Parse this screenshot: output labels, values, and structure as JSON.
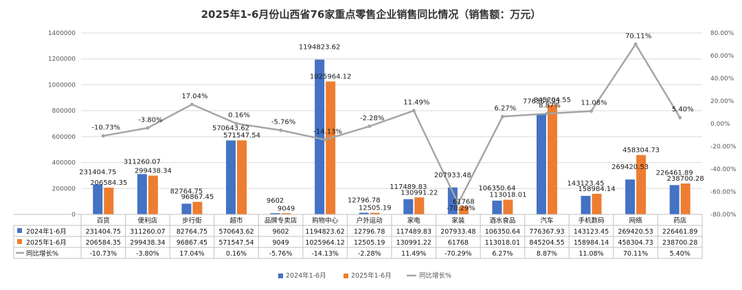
{
  "chart_data": {
    "type": "bar",
    "title": "2025年1-6月份山西省76家重点零售企业销售同比情况（销售额：万元）",
    "categories": [
      "百货",
      "便利店",
      "步行街",
      "超市",
      "品牌专卖店",
      "购物中心",
      "户外运动",
      "家电",
      "家装",
      "酒水食品",
      "汽车",
      "手机数码",
      "网络",
      "药店"
    ],
    "series": [
      {
        "name": "2024年1-6月",
        "color": "#4472C4",
        "axis": "left",
        "values": [
          231404.75,
          311260.07,
          82764.75,
          570643.62,
          9602,
          1194823.62,
          12796.78,
          117489.83,
          207933.48,
          106350.64,
          776367.93,
          143123.45,
          269420.53,
          226461.89
        ],
        "labels": [
          "231404.75",
          "311260.07",
          "82764.75",
          "570643.62",
          "9602",
          "1194823.62",
          "12796.78",
          "117489.83",
          "207933.48",
          "106350.64",
          "776367.93",
          "143123.45",
          "269420.53",
          "226461.89"
        ]
      },
      {
        "name": "2025年1-6月",
        "color": "#ED7D31",
        "axis": "left",
        "values": [
          206584.35,
          299438.34,
          96867.45,
          571547.54,
          9049,
          1025964.12,
          12505.19,
          130991.22,
          61768,
          113018.01,
          845204.55,
          158984.14,
          458304.73,
          238700.28
        ],
        "labels": [
          "206584.35",
          "299438.34",
          "96867.45",
          "571547.54",
          "9049",
          "1025964.12",
          "12505.19",
          "130991.22",
          "61768",
          "113018.01",
          "845204.55",
          "158984.14",
          "458304.73",
          "238700.28"
        ]
      },
      {
        "name": "同比增长%",
        "type": "line",
        "color": "#A5A5A5",
        "axis": "right",
        "values": [
          -10.73,
          -3.8,
          17.04,
          0.16,
          -5.76,
          -14.13,
          -2.28,
          11.49,
          -70.29,
          6.27,
          8.87,
          11.08,
          70.11,
          5.4
        ],
        "labels": [
          "-10.73%",
          "-3.80%",
          "17.04%",
          "0.16%",
          "-5.76%",
          "-14.13%",
          "-2.28%",
          "11.49%",
          "-70.29%",
          "6.27%",
          "8.87%",
          "11.08%",
          "70.11%",
          "5.40%"
        ]
      }
    ],
    "ylim_left": [
      0,
      1400000
    ],
    "yticks_left": [
      "0",
      "200000",
      "400000",
      "600000",
      "800000",
      "1000000",
      "1200000",
      "1400000"
    ],
    "ylim_right": [
      -80,
      80
    ],
    "yticks_right": [
      "-80.00%",
      "-60.00%",
      "-40.00%",
      "-20.00%",
      "0.00%",
      "20.00%",
      "40.00%",
      "60.00%",
      "80.00%"
    ],
    "grid": true,
    "legend": "bottom",
    "data_table": true
  }
}
